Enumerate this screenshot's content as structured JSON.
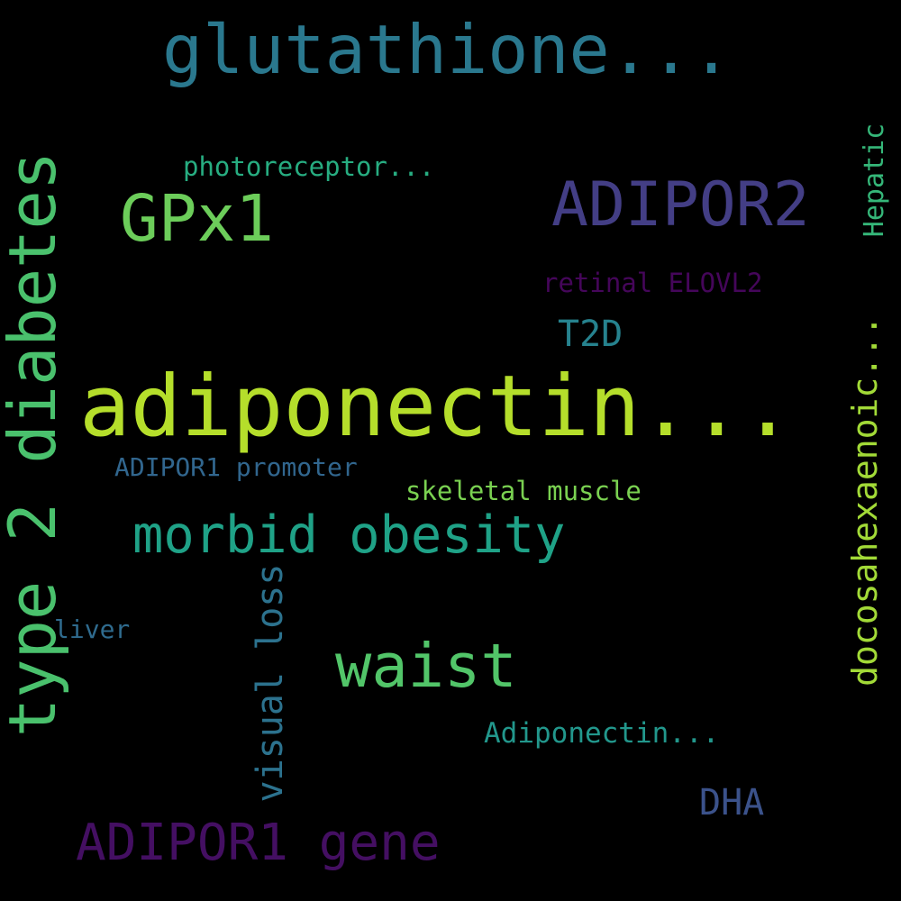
{
  "words": [
    {
      "id": "adiponectin",
      "text": "adiponectin...",
      "color": "#b5de2b"
    },
    {
      "id": "glutathione",
      "text": "glutathione...",
      "color": "#2a788e"
    },
    {
      "id": "type-2-diabetes",
      "text": "type 2 diabetes",
      "color": "#4ac16d"
    },
    {
      "id": "gpx1",
      "text": "GPx1",
      "color": "#6ccd5a"
    },
    {
      "id": "adipor2",
      "text": "ADIPOR2",
      "color": "#433e85"
    },
    {
      "id": "morbid-obesity",
      "text": "morbid obesity",
      "color": "#1fa287"
    },
    {
      "id": "waist",
      "text": "waist",
      "color": "#52c569"
    },
    {
      "id": "adipor1-gene",
      "text": "ADIPOR1 gene",
      "color": "#440f62"
    },
    {
      "id": "docosahexaenoic",
      "text": "docosahexaenoic...",
      "color": "#a2da37"
    },
    {
      "id": "visual-loss",
      "text": "visual loss",
      "color": "#2c728e"
    },
    {
      "id": "photoreceptor",
      "text": "photoreceptor...",
      "color": "#27ad81"
    },
    {
      "id": "retinal-elovl2",
      "text": "retinal ELOVL2",
      "color": "#45065a"
    },
    {
      "id": "t2d",
      "text": "T2D",
      "color": "#26828e"
    },
    {
      "id": "hepatic",
      "text": "Hepatic",
      "color": "#35b779"
    },
    {
      "id": "adipor1-promoter",
      "text": "ADIPOR1 promoter",
      "color": "#31668e"
    },
    {
      "id": "skeletal-muscle",
      "text": "skeletal muscle",
      "color": "#7ad151"
    },
    {
      "id": "liver",
      "text": "liver",
      "color": "#2f6b8e"
    },
    {
      "id": "adiponectin-2",
      "text": "Adiponectin...",
      "color": "#22978c"
    },
    {
      "id": "dha",
      "text": "DHA",
      "color": "#3b528b"
    }
  ]
}
